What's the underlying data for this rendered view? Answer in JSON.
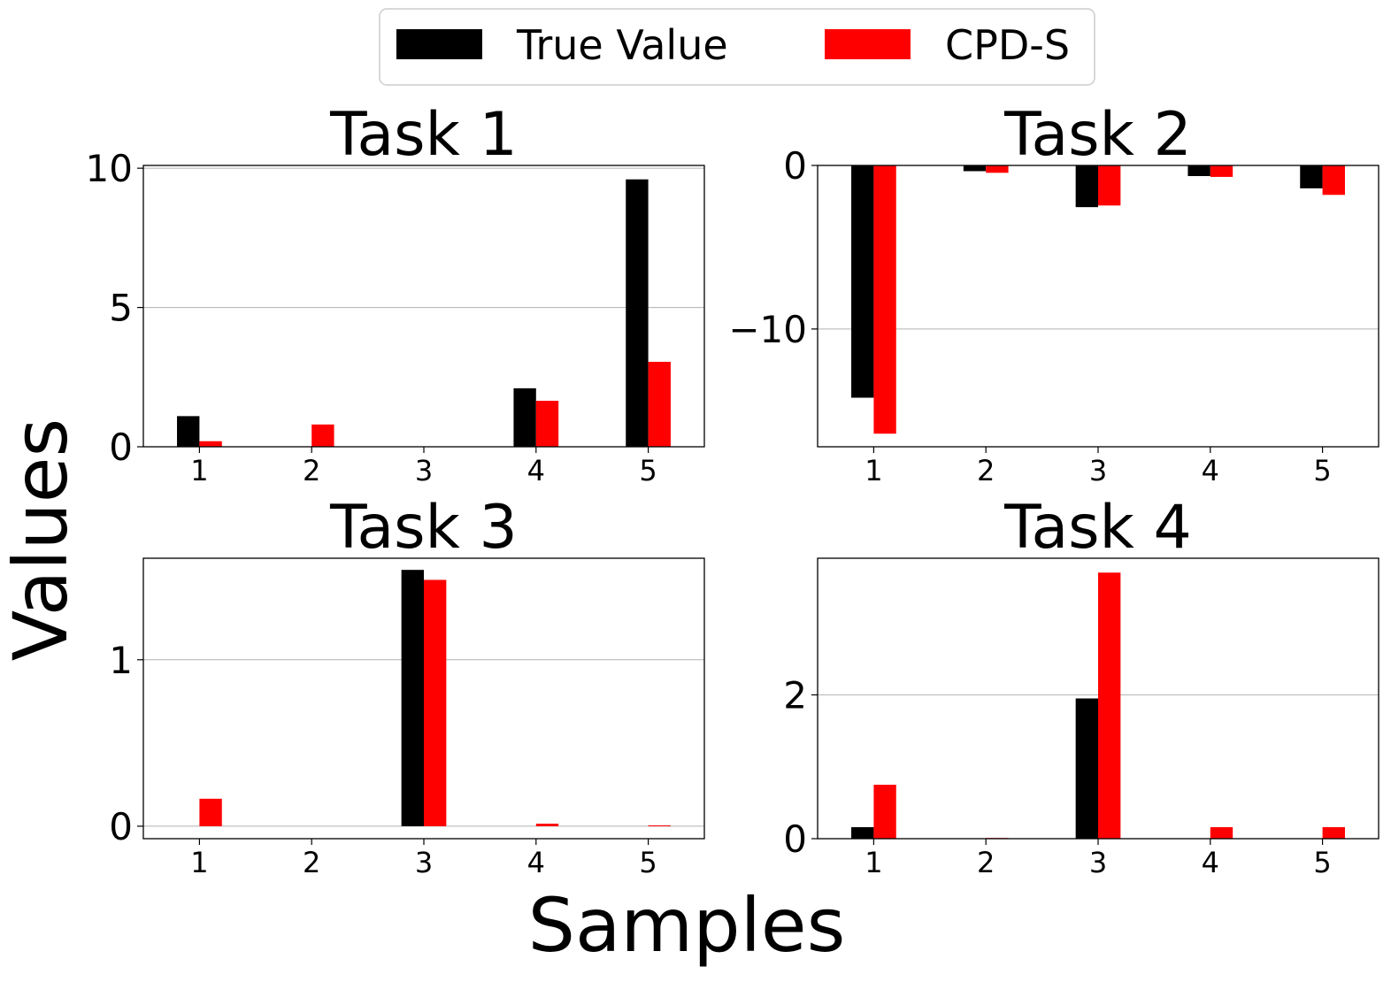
{
  "chart_data": {
    "type": "bar",
    "figure_xlabel": "Samples",
    "figure_ylabel": "Values",
    "legend": {
      "placement": "top-center",
      "entries": [
        {
          "label": "True Value",
          "color": "#000000"
        },
        {
          "label": "CPD-S",
          "color": "#ff0000"
        }
      ]
    },
    "subplots": [
      {
        "title": "Task 1",
        "categories": [
          "1",
          "2",
          "3",
          "4",
          "5"
        ],
        "ylim": [
          0,
          10.1
        ],
        "yticks": [
          0,
          5,
          10
        ],
        "ytick_labels": [
          "0",
          "5",
          "10"
        ],
        "series": [
          {
            "name": "True Value",
            "values": [
              1.1,
              0.0,
              0.0,
              2.1,
              9.6
            ]
          },
          {
            "name": "CPD-S",
            "values": [
              0.2,
              0.8,
              0.0,
              1.65,
              3.05
            ]
          }
        ]
      },
      {
        "title": "Task 2",
        "categories": [
          "1",
          "2",
          "3",
          "4",
          "5"
        ],
        "ylim": [
          -17.2,
          0
        ],
        "yticks": [
          0,
          -10
        ],
        "ytick_labels": [
          "0",
          "−10"
        ],
        "series": [
          {
            "name": "True Value",
            "values": [
              -14.2,
              -0.35,
              -2.55,
              -0.65,
              -1.4
            ]
          },
          {
            "name": "CPD-S",
            "values": [
              -16.4,
              -0.45,
              -2.45,
              -0.7,
              -1.8
            ]
          }
        ]
      },
      {
        "title": "Task 3",
        "categories": [
          "1",
          "2",
          "3",
          "4",
          "5"
        ],
        "ylim": [
          -0.075,
          1.61
        ],
        "yticks": [
          0,
          1
        ],
        "ytick_labels": [
          "0",
          "1"
        ],
        "series": [
          {
            "name": "True Value",
            "values": [
              0.0,
              0.0,
              1.54,
              0.0,
              0.0
            ]
          },
          {
            "name": "CPD-S",
            "values": [
              0.165,
              0.0,
              1.48,
              0.015,
              0.005
            ]
          }
        ]
      },
      {
        "title": "Task 4",
        "categories": [
          "1",
          "2",
          "3",
          "4",
          "5"
        ],
        "ylim": [
          0,
          3.9
        ],
        "yticks": [
          0,
          2
        ],
        "ytick_labels": [
          "0",
          "2"
        ],
        "series": [
          {
            "name": "True Value",
            "values": [
              0.16,
              0.0,
              1.95,
              0.0,
              0.0
            ]
          },
          {
            "name": "CPD-S",
            "values": [
              0.75,
              0.01,
              3.7,
              0.16,
              0.16
            ]
          }
        ]
      }
    ]
  }
}
